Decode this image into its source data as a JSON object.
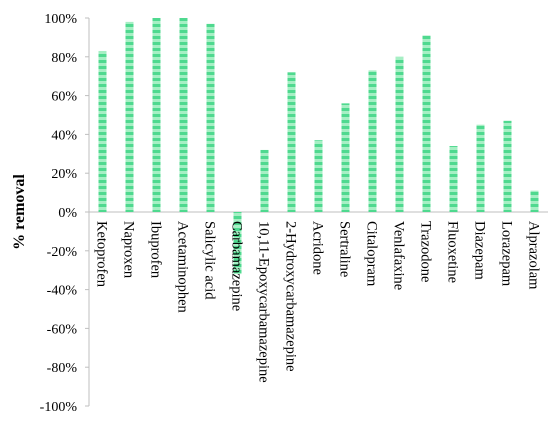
{
  "chart_data": {
    "type": "bar",
    "title": "",
    "xlabel": "",
    "ylabel": "% removal",
    "ylim": [
      -100,
      100
    ],
    "ytick_step": 20,
    "yticks": [
      "-100%",
      "-80%",
      "-60%",
      "-40%",
      "-20%",
      "0%",
      "20%",
      "40%",
      "60%",
      "80%",
      "100%"
    ],
    "grid": false,
    "categories": [
      "Ketoprofen",
      "Naproxen",
      "Ibuprofen",
      "Acetaminophen",
      "Salicylic acid",
      "Carbamazepine",
      "10,11-Epoxycarbamazepine",
      "2-Hydroxycarbamazepine",
      "Acridone",
      "Sertraline",
      "Citalopram",
      "Venlafaxine",
      "Trazodone",
      "Fluoxetine",
      "Diazepam",
      "Lorazepam",
      "Alprazolam"
    ],
    "values": [
      83,
      98,
      100,
      100,
      97,
      -32,
      32,
      72,
      37,
      56,
      73,
      80,
      91,
      34,
      45,
      47,
      11
    ],
    "colors": {
      "bar_dark": "#4fd98f",
      "bar_light": "#a6efc4"
    }
  }
}
